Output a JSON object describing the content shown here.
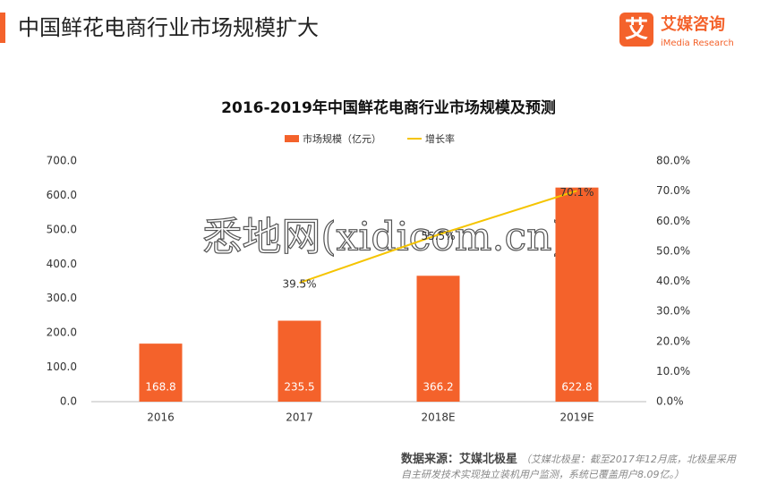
{
  "header": {
    "title": "中国鲜花电商行业市场规模扩大",
    "logo_mark": "艾",
    "logo_name": "艾媒咨询",
    "logo_sub": "iMedia Research"
  },
  "watermark": "悉地网(xidicom.cn)",
  "chart_data": {
    "type": "bar",
    "title": "2016-2019年中国鲜花电商行业市场规模及预测",
    "categories": [
      "2016",
      "2017",
      "2018E",
      "2019E"
    ],
    "series": [
      {
        "name": "市场规模（亿元）",
        "type": "bar",
        "color": "#f4622b",
        "values": [
          168.8,
          235.5,
          366.2,
          622.8
        ]
      },
      {
        "name": "增长率",
        "type": "line",
        "axis": "y2",
        "color": "#f5c400",
        "values": [
          null,
          39.5,
          55.5,
          70.1
        ],
        "value_labels": [
          null,
          "39.5%",
          "55.5%",
          "70.1%"
        ]
      }
    ],
    "ylim": [
      0,
      700
    ],
    "yticks": [
      {
        "value": 0,
        "label": "0.0"
      },
      {
        "value": 100,
        "label": "100.0"
      },
      {
        "value": 200,
        "label": "200.0"
      },
      {
        "value": 300,
        "label": "300.0"
      },
      {
        "value": 400,
        "label": "400.0"
      },
      {
        "value": 500,
        "label": "500.0"
      },
      {
        "value": 600,
        "label": "600.0"
      },
      {
        "value": 700,
        "label": "700.0"
      }
    ],
    "y2lim": [
      0,
      80
    ],
    "y2ticks": [
      {
        "value": 0,
        "label": "0.0%"
      },
      {
        "value": 10,
        "label": "10.0%"
      },
      {
        "value": 20,
        "label": "20.0%"
      },
      {
        "value": 30,
        "label": "30.0%"
      },
      {
        "value": 40,
        "label": "40.0%"
      },
      {
        "value": 50,
        "label": "50.0%"
      },
      {
        "value": 60,
        "label": "60.0%"
      },
      {
        "value": 70,
        "label": "70.0%"
      },
      {
        "value": 80,
        "label": "80.0%"
      }
    ],
    "grid": false,
    "legend": "top"
  },
  "footer": {
    "source": "数据来源：艾媒北极星",
    "note": "（艾媒北极星：截至2017年12月底，北极星采用自主研发技术实现独立装机用户监测，系统已覆盖用户8.09亿。）"
  }
}
